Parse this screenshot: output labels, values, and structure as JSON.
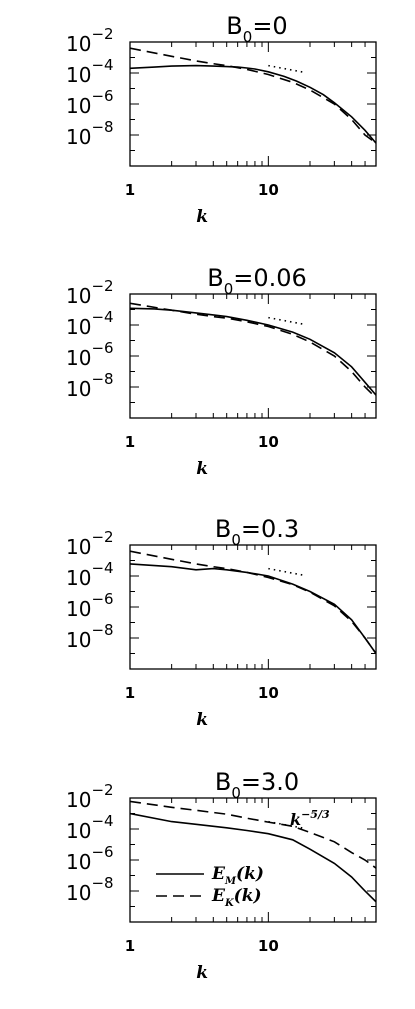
{
  "chart_data": [
    {
      "type": "line",
      "title_base": "B",
      "title_sub": "0",
      "title_value": "=0",
      "xlabel": "k",
      "ylabel": "",
      "x_scale": "log",
      "y_scale": "log",
      "xlim": [
        1,
        60
      ],
      "ylim": [
        1e-10,
        0.01
      ],
      "x_ticks": [
        {
          "value": 1,
          "label": "1"
        },
        {
          "value": 10,
          "label": "10"
        }
      ],
      "y_ticks": [
        {
          "value": 0.01,
          "base": "10",
          "exp": "−2"
        },
        {
          "value": 0.0001,
          "base": "10",
          "exp": "−4"
        },
        {
          "value": 1e-06,
          "base": "10",
          "exp": "−6"
        },
        {
          "value": 1e-08,
          "base": "10",
          "exp": "−8"
        }
      ],
      "reference_line": {
        "x": [
          10,
          18
        ],
        "y": [
          0.0003,
          0.000112
        ]
      },
      "series": [
        {
          "dash": "solid",
          "x": [
            1,
            1.5,
            2,
            3,
            4,
            5,
            6,
            7,
            8,
            10,
            13,
            16,
            20,
            25,
            30,
            40,
            50,
            60
          ],
          "y": [
            0.0002,
            0.00024,
            0.00028,
            0.0003,
            0.00028,
            0.00026,
            0.00024,
            0.00021,
            0.00018,
            0.00012,
            6e-05,
            3e-05,
            1.2e-05,
            4e-06,
            1.2e-06,
            1.5e-07,
            2e-08,
            3e-09
          ]
        },
        {
          "dash": "dashed",
          "x": [
            1,
            2,
            3,
            4,
            5,
            7,
            10,
            15,
            20,
            30,
            40,
            50,
            60
          ],
          "y": [
            0.004,
            0.0012,
            0.0006,
            0.0004,
            0.0003,
            0.00017,
            8e-05,
            2.5e-05,
            8e-06,
            1e-06,
            1e-07,
            1e-08,
            3e-09
          ]
        }
      ]
    },
    {
      "type": "line",
      "title_base": "B",
      "title_sub": "0",
      "title_value": "=0.06",
      "xlabel": "k",
      "ylabel": "",
      "x_scale": "log",
      "y_scale": "log",
      "xlim": [
        1,
        60
      ],
      "ylim": [
        1e-10,
        0.01
      ],
      "x_ticks": [
        {
          "value": 1,
          "label": "1"
        },
        {
          "value": 10,
          "label": "10"
        }
      ],
      "y_ticks": [
        {
          "value": 0.01,
          "base": "10",
          "exp": "−2"
        },
        {
          "value": 0.0001,
          "base": "10",
          "exp": "−4"
        },
        {
          "value": 1e-06,
          "base": "10",
          "exp": "−6"
        },
        {
          "value": 1e-08,
          "base": "10",
          "exp": "−8"
        }
      ],
      "reference_line": {
        "x": [
          10,
          18
        ],
        "y": [
          0.0003,
          0.000112
        ]
      },
      "series": [
        {
          "dash": "solid",
          "x": [
            1,
            1.5,
            2,
            3,
            4,
            5,
            7,
            10,
            15,
            20,
            30,
            40,
            50,
            60
          ],
          "y": [
            0.0012,
            0.0011,
            0.0009,
            0.0006,
            0.00045,
            0.00035,
            0.0002,
            0.0001,
            3.5e-05,
            1.2e-05,
            1.6e-06,
            2e-07,
            2e-08,
            3e-09
          ]
        },
        {
          "dash": "dashed",
          "x": [
            1,
            2,
            3,
            4,
            5,
            7,
            10,
            15,
            20,
            30,
            40,
            50,
            60
          ],
          "y": [
            0.0025,
            0.0009,
            0.0005,
            0.00035,
            0.00028,
            0.00016,
            8e-05,
            2.5e-05,
            8e-06,
            1e-06,
            1e-07,
            1e-08,
            2e-09
          ]
        }
      ]
    },
    {
      "type": "line",
      "title_base": "B",
      "title_sub": "0",
      "title_value": "=0.3",
      "xlabel": "k",
      "ylabel": "",
      "x_scale": "log",
      "y_scale": "log",
      "xlim": [
        1,
        60
      ],
      "ylim": [
        1e-10,
        0.01
      ],
      "x_ticks": [
        {
          "value": 1,
          "label": "1"
        },
        {
          "value": 10,
          "label": "10"
        }
      ],
      "y_ticks": [
        {
          "value": 0.01,
          "base": "10",
          "exp": "−2"
        },
        {
          "value": 0.0001,
          "base": "10",
          "exp": "−4"
        },
        {
          "value": 1e-06,
          "base": "10",
          "exp": "−6"
        },
        {
          "value": 1e-08,
          "base": "10",
          "exp": "−8"
        }
      ],
      "reference_line": {
        "x": [
          10,
          18
        ],
        "y": [
          0.0003,
          0.000112
        ]
      },
      "series": [
        {
          "dash": "solid",
          "x": [
            1,
            2,
            3,
            4,
            5,
            7,
            10,
            15,
            20,
            30,
            40,
            50,
            60
          ],
          "y": [
            0.0006,
            0.0004,
            0.00025,
            0.0003,
            0.00025,
            0.00017,
            0.0001,
            3e-05,
            1e-05,
            1.5e-06,
            1.5e-07,
            1e-08,
            1e-09
          ]
        },
        {
          "dash": "dashed",
          "x": [
            1,
            2,
            3,
            4,
            5,
            7,
            10,
            15,
            20,
            30,
            40,
            50,
            60
          ],
          "y": [
            0.004,
            0.0012,
            0.0006,
            0.0004,
            0.0003,
            0.00017,
            8e-05,
            2.8e-05,
            9e-06,
            1.2e-06,
            1.2e-07,
            1e-08,
            1e-09
          ]
        }
      ]
    },
    {
      "type": "line",
      "title_base": "B",
      "title_sub": "0",
      "title_value": "=3.0",
      "xlabel": "k",
      "ylabel": "",
      "x_scale": "log",
      "y_scale": "log",
      "xlim": [
        1,
        60
      ],
      "ylim": [
        1e-10,
        0.01
      ],
      "x_ticks": [
        {
          "value": 1,
          "label": "1"
        },
        {
          "value": 10,
          "label": "10"
        }
      ],
      "y_ticks": [
        {
          "value": 0.01,
          "base": "10",
          "exp": "−2"
        },
        {
          "value": 0.0001,
          "base": "10",
          "exp": "−4"
        },
        {
          "value": 1e-06,
          "base": "10",
          "exp": "−6"
        },
        {
          "value": 1e-08,
          "base": "10",
          "exp": "−8"
        }
      ],
      "reference_line": {
        "x": [
          10,
          18
        ],
        "y": [
          0.0003,
          0.000112
        ]
      },
      "annotation": {
        "base": "k",
        "exp": "−5/3"
      },
      "legend": {
        "placement": "bottom-left",
        "entries": [
          {
            "dash": "solid",
            "label_main": "E",
            "label_sub": "M",
            "label_tail": "(k)"
          },
          {
            "dash": "dashed",
            "label_main": "E",
            "label_sub": "K",
            "label_tail": "(k)"
          }
        ]
      },
      "series": [
        {
          "dash": "solid",
          "x": [
            1,
            2,
            3,
            5,
            7,
            10,
            15,
            20,
            30,
            40,
            50,
            60
          ],
          "y": [
            0.001,
            0.0003,
            0.0002,
            0.00012,
            8e-05,
            5e-05,
            2e-05,
            5e-06,
            6e-07,
            8e-08,
            1e-08,
            2e-09
          ]
        },
        {
          "dash": "dashed",
          "x": [
            1,
            2,
            3,
            5,
            7,
            10,
            15,
            20,
            30,
            40,
            50,
            60
          ],
          "y": [
            0.006,
            0.0025,
            0.0016,
            0.0009,
            0.0005,
            0.00028,
            0.00015,
            6e-05,
            1.5e-05,
            3e-06,
            1e-06,
            3e-07
          ]
        }
      ]
    }
  ]
}
